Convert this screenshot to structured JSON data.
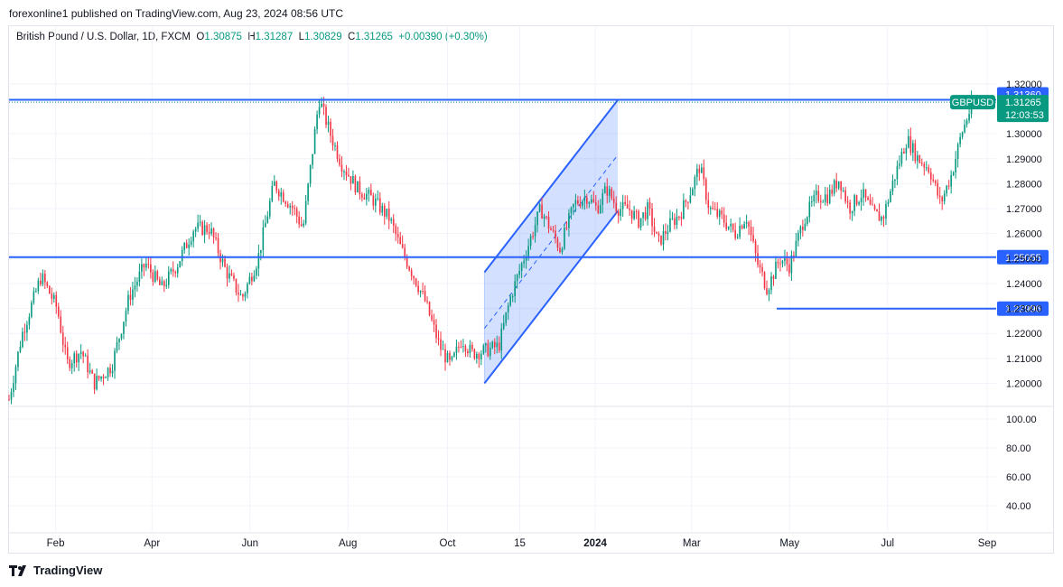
{
  "header": {
    "published": "forexonline1 published on TradingView.com, Aug 23, 2024 08:56 UTC"
  },
  "legend": {
    "title": "British Pound / U.S. Dollar, 1D, FXCM",
    "open_key": "O",
    "open": "1.30875",
    "high_key": "H",
    "high": "1.31287",
    "low_key": "L",
    "low": "1.30829",
    "close_key": "C",
    "close": "1.31265",
    "change": "+0.00390 (+0.30%)"
  },
  "footer": {
    "brand": "TradingView"
  },
  "colors": {
    "up": "#089981",
    "down": "#f23645",
    "line": "#2962ff",
    "grid": "#f0f3fa",
    "text": "#131722"
  },
  "chart_data": {
    "type": "candlestick",
    "symbol_label": "GBPUSD",
    "last_price": "1.31265",
    "countdown": "12:03:53",
    "price_axis": {
      "ylim": [
        1.1915,
        1.3355
      ],
      "ticks": [
        "1.20000",
        "1.21000",
        "1.22000",
        "1.23000",
        "1.24000",
        "1.25000",
        "1.26000",
        "1.27000",
        "1.28000",
        "1.29000",
        "1.30000",
        "1.32000"
      ]
    },
    "volume_axis": {
      "ticks": [
        "100.00",
        "80.00",
        "60.00",
        "40.00"
      ]
    },
    "x_ticks": [
      {
        "label": "Feb",
        "bold": false,
        "day": 29
      },
      {
        "label": "Apr",
        "bold": false,
        "day": 89
      },
      {
        "label": "Jun",
        "bold": false,
        "day": 150
      },
      {
        "label": "Aug",
        "bold": false,
        "day": 211
      },
      {
        "label": "Oct",
        "bold": false,
        "day": 273
      },
      {
        "label": "15",
        "bold": false,
        "day": 318
      },
      {
        "label": "2024",
        "bold": true,
        "day": 365
      },
      {
        "label": "Mar",
        "bold": false,
        "day": 425
      },
      {
        "label": "May",
        "bold": false,
        "day": 486
      },
      {
        "label": "Jul",
        "bold": false,
        "day": 547
      },
      {
        "label": "Sep",
        "bold": false,
        "day": 609
      }
    ],
    "levels": [
      {
        "value": 1.3136,
        "label": "1.31360"
      },
      {
        "value": 1.25055,
        "label": "1.25055"
      },
      {
        "value": 1.22996,
        "label": "1.22996"
      }
    ],
    "channel": {
      "lower": [
        [
          296,
          1.2
        ],
        [
          379,
          1.269
        ]
      ],
      "upper": [
        [
          296,
          1.2445
        ],
        [
          379,
          1.3135
        ]
      ],
      "mid": [
        [
          296,
          1.222
        ],
        [
          379,
          1.2915
        ]
      ]
    },
    "price_path": [
      [
        0,
        1.1935
      ],
      [
        8,
        1.2195
      ],
      [
        20,
        1.243
      ],
      [
        30,
        1.23
      ],
      [
        36,
        1.208
      ],
      [
        45,
        1.213
      ],
      [
        53,
        1.2
      ],
      [
        64,
        1.207
      ],
      [
        75,
        1.235
      ],
      [
        85,
        1.248
      ],
      [
        95,
        1.238
      ],
      [
        105,
        1.248
      ],
      [
        115,
        1.262
      ],
      [
        125,
        1.262
      ],
      [
        135,
        1.245
      ],
      [
        145,
        1.234
      ],
      [
        155,
        1.25
      ],
      [
        165,
        1.28
      ],
      [
        177,
        1.27
      ],
      [
        183,
        1.262
      ],
      [
        193,
        1.314
      ],
      [
        200,
        1.3
      ],
      [
        207,
        1.288
      ],
      [
        217,
        1.278
      ],
      [
        226,
        1.274
      ],
      [
        237,
        1.266
      ],
      [
        244,
        1.254
      ],
      [
        252,
        1.243
      ],
      [
        259,
        1.233
      ],
      [
        268,
        1.215
      ],
      [
        275,
        1.207
      ],
      [
        282,
        1.218
      ],
      [
        288,
        1.212
      ],
      [
        296,
        1.213
      ],
      [
        305,
        1.215
      ],
      [
        312,
        1.234
      ],
      [
        322,
        1.253
      ],
      [
        331,
        1.27
      ],
      [
        337,
        1.262
      ],
      [
        343,
        1.254
      ],
      [
        352,
        1.272
      ],
      [
        360,
        1.275
      ],
      [
        366,
        1.27
      ],
      [
        372,
        1.278
      ],
      [
        379,
        1.27
      ],
      [
        386,
        1.27
      ],
      [
        392,
        1.265
      ],
      [
        398,
        1.27
      ],
      [
        404,
        1.256
      ],
      [
        412,
        1.264
      ],
      [
        418,
        1.268
      ],
      [
        425,
        1.278
      ],
      [
        430,
        1.287
      ],
      [
        436,
        1.27
      ],
      [
        444,
        1.266
      ],
      [
        452,
        1.26
      ],
      [
        459,
        1.267
      ],
      [
        466,
        1.248
      ],
      [
        472,
        1.238
      ],
      [
        480,
        1.25
      ],
      [
        486,
        1.247
      ],
      [
        495,
        1.266
      ],
      [
        503,
        1.275
      ],
      [
        510,
        1.275
      ],
      [
        517,
        1.282
      ],
      [
        523,
        1.27
      ],
      [
        531,
        1.276
      ],
      [
        538,
        1.268
      ],
      [
        544,
        1.266
      ],
      [
        551,
        1.282
      ],
      [
        559,
        1.298
      ],
      [
        566,
        1.29
      ],
      [
        573,
        1.286
      ],
      [
        580,
        1.272
      ],
      [
        587,
        1.284
      ],
      [
        593,
        1.3
      ],
      [
        600,
        1.3125
      ]
    ]
  }
}
